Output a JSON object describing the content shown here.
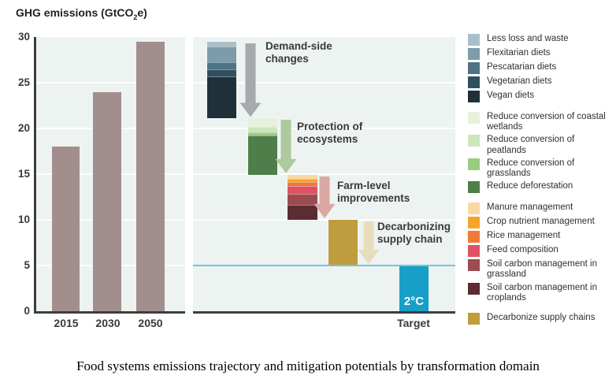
{
  "title_parts": {
    "pre": "GHG emissions (GtCO",
    "sub": "2",
    "post": "e)"
  },
  "caption": "Food systems emissions trajectory and mitigation potentials by transformation domain",
  "colors": {
    "panel_bg": "#edf3f1",
    "trajectory_bar": "#a28f8d",
    "axis": "#3d3d3d",
    "reference_line": "#74c3dd",
    "target_bar": "#189fc7",
    "annotation_text": "#3a3a3a"
  },
  "chart_data": [
    {
      "type": "bar",
      "title": "GHG emissions (GtCO2e)",
      "categories": [
        "2015",
        "2030",
        "2050"
      ],
      "values": [
        18,
        24,
        29.5
      ],
      "xlabel": "",
      "ylabel": "GHG emissions (GtCO2e)",
      "ylim": [
        0,
        30
      ],
      "y_ticks": [
        0,
        5,
        10,
        15,
        20,
        25,
        30
      ],
      "grid": true,
      "bar_color": "#a28f8d"
    },
    {
      "type": "waterfall",
      "start_value": 29.5,
      "ylim": [
        0,
        30
      ],
      "reference_line": {
        "value": 5,
        "color": "#74c3dd"
      },
      "steps": [
        {
          "label": "Demand-side changes",
          "from": 29.5,
          "to": 21.1,
          "total": 8.4,
          "arrow_color": "#a7a9ac",
          "segments": [
            {
              "name": "Less loss and waste",
              "value": 0.5,
              "color": "#a9c0c9"
            },
            {
              "name": "Flexitarian diets",
              "value": 1.8,
              "color": "#7d9cab"
            },
            {
              "name": "Pescatarian diets",
              "value": 0.7,
              "color": "#4e7385"
            },
            {
              "name": "Vegetarian diets",
              "value": 0.8,
              "color": "#31505e"
            },
            {
              "name": "Vegan diets",
              "value": 4.6,
              "color": "#20303a"
            }
          ]
        },
        {
          "label": "Protection of ecosystems",
          "from": 21.1,
          "to": 14.9,
          "total": 6.2,
          "arrow_color": "#aec99d",
          "segments": [
            {
              "name": "Reduce conversion of coastal wetlands",
              "value": 0.9,
              "color": "#e6f1dc"
            },
            {
              "name": "Reduce conversion of peatlands",
              "value": 0.6,
              "color": "#cde5bb"
            },
            {
              "name": "Reduce conversion of grasslands",
              "value": 0.4,
              "color": "#9bcb81"
            },
            {
              "name": "Reduce deforestation",
              "value": 4.3,
              "color": "#4f7e4b"
            }
          ]
        },
        {
          "label": "Farm-level improvements",
          "from": 14.9,
          "to": 10.0,
          "total": 4.9,
          "arrow_color": "#d8a8a3",
          "segments": [
            {
              "name": "Manure management",
              "value": 0.4,
              "color": "#fad8a4"
            },
            {
              "name": "Crop nutrient management",
              "value": 0.4,
              "color": "#f6a428"
            },
            {
              "name": "Rice management",
              "value": 0.4,
              "color": "#ee7a35"
            },
            {
              "name": "Feed composition",
              "value": 0.9,
              "color": "#e05263"
            },
            {
              "name": "Soil carbon management in grassland",
              "value": 1.2,
              "color": "#9d4a50"
            },
            {
              "name": "Soil carbon management in croplands",
              "value": 1.6,
              "color": "#5c2b33"
            }
          ]
        },
        {
          "label": "Decarbonizing supply chain",
          "from": 10.0,
          "to": 5.0,
          "total": 5.0,
          "arrow_color": "#e7ddbd",
          "segments": [
            {
              "name": "Decarbonize supply chains",
              "value": 5.0,
              "color": "#bf9c3e"
            }
          ]
        }
      ],
      "target": {
        "axis_label": "Target",
        "bar_label": "2°C",
        "value": 5,
        "color": "#189fc7"
      }
    }
  ],
  "legend": {
    "groups": [
      {
        "items": [
          {
            "label": "Less loss and waste",
            "color": "#a9c0c9"
          },
          {
            "label": "Flexitarian diets",
            "color": "#7d9cab"
          },
          {
            "label": "Pescatarian diets",
            "color": "#4e7385"
          },
          {
            "label": "Vegetarian diets",
            "color": "#31505e"
          },
          {
            "label": "Vegan diets",
            "color": "#20303a"
          }
        ]
      },
      {
        "items": [
          {
            "label": "Reduce conversion of coastal wetlands",
            "color": "#e6f1dc"
          },
          {
            "label": "Reduce conversion of peatlands",
            "color": "#cde5bb"
          },
          {
            "label": "Reduce conversion of grasslands",
            "color": "#9bcb81"
          },
          {
            "label": "Reduce deforestation",
            "color": "#4f7e4b"
          }
        ]
      },
      {
        "items": [
          {
            "label": "Manure management",
            "color": "#fad8a4"
          },
          {
            "label": "Crop nutrient management",
            "color": "#f6a428"
          },
          {
            "label": "Rice management",
            "color": "#ee7a35"
          },
          {
            "label": "Feed composition",
            "color": "#e05263"
          },
          {
            "label": "Soil carbon management in grassland",
            "color": "#9d4a50"
          },
          {
            "label": "Soil carbon management in croplands",
            "color": "#5c2b33"
          }
        ]
      },
      {
        "items": [
          {
            "label": "Decarbonize supply chains",
            "color": "#bf9c3e"
          }
        ]
      }
    ]
  }
}
